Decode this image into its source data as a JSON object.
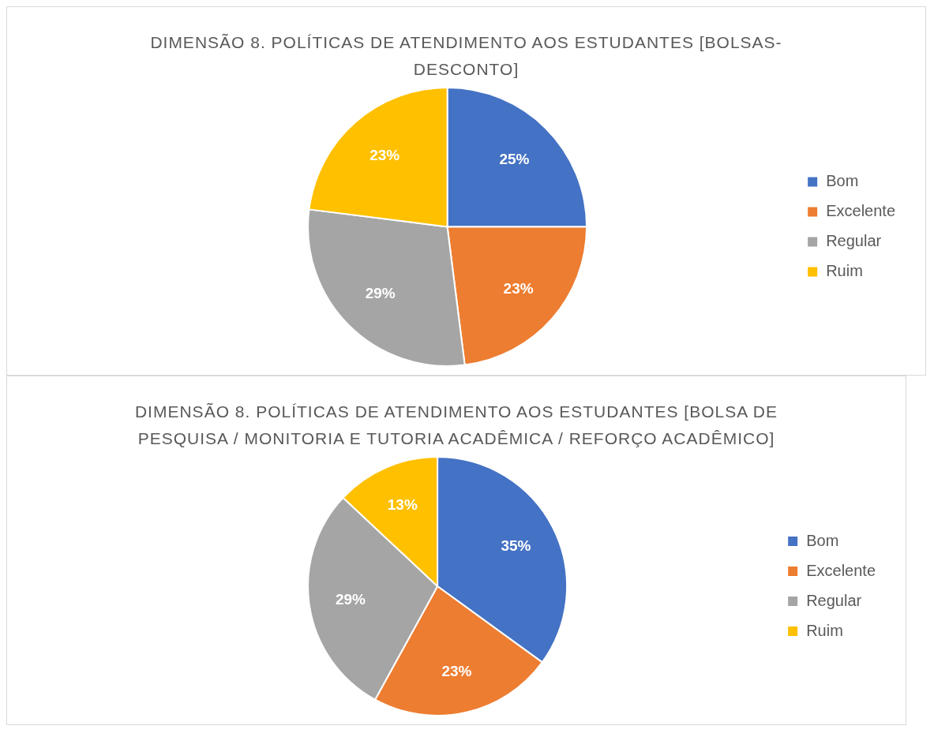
{
  "chart_data": [
    {
      "type": "pie",
      "title": "DIMENSÃO 8. POLÍTICAS DE ATENDIMENTO AOS ESTUDANTES [BOLSAS-DESCONTO]",
      "categories": [
        "Bom",
        "Excelente",
        "Regular",
        "Ruim"
      ],
      "values": [
        25,
        23,
        29,
        23
      ],
      "value_labels": [
        "25%",
        "23%",
        "29%",
        "23%"
      ],
      "colors": [
        "#4472c4",
        "#ed7d31",
        "#a5a5a5",
        "#ffc000"
      ],
      "legend": "right"
    },
    {
      "type": "pie",
      "title": "DIMENSÃO 8. POLÍTICAS DE ATENDIMENTO AOS ESTUDANTES [BOLSA DE PESQUISA / MONITORIA E TUTORIA ACADÊMICA / REFORÇO ACADÊMICO]",
      "categories": [
        "Bom",
        "Excelente",
        "Regular",
        "Ruim"
      ],
      "values": [
        35,
        23,
        29,
        13
      ],
      "value_labels": [
        "35%",
        "23%",
        "29%",
        "13%"
      ],
      "colors": [
        "#4472c4",
        "#ed7d31",
        "#a5a5a5",
        "#ffc000"
      ],
      "legend": "right"
    }
  ]
}
